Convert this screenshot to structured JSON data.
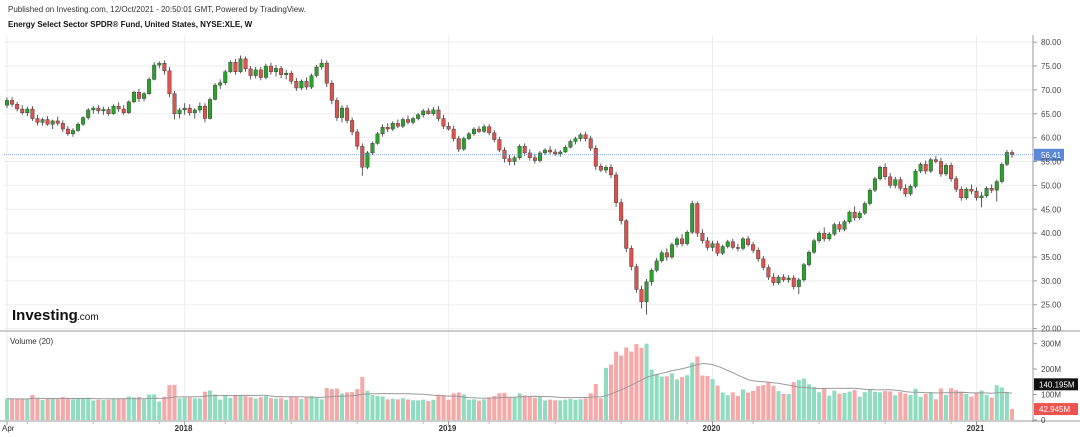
{
  "header": {
    "published": "Published on Investing.com, 12/Oct/2021 - 20:50:01 GMT, Powered by TradingView.",
    "title": "Energy Select Sector SPDR® Fund, United States, NYSE:XLE, W"
  },
  "logo": {
    "brand": "Investing",
    "suffix": ".com"
  },
  "colors": {
    "up": "#26a69a",
    "down": "#ef5350",
    "up_candle": "#2ca02c",
    "down_candle": "#d9534f",
    "vol_up": "#8fdcc0",
    "vol_down": "#f5a8a8",
    "last_price": "#5b87d6",
    "vol_last": "#ef5350",
    "vol_ma_label": "#111111",
    "grid": "#eeeeee",
    "ma_line": "#999999"
  },
  "chart_data": {
    "type": "candlestick",
    "price_axis": {
      "ticks": [
        "80.00",
        "75.00",
        "70.00",
        "65.00",
        "60.00",
        "55.00",
        "50.00",
        "45.00",
        "40.00",
        "35.00",
        "30.00",
        "25.00",
        "20.00"
      ],
      "ylim": [
        19.5,
        81.5
      ]
    },
    "last_price_label": "56.41",
    "last_price_value": 56.41,
    "x_axis_labels": [
      "Apr",
      "2018",
      "2019",
      "2020",
      "2021"
    ],
    "x_axis_label_index": [
      0,
      35,
      87,
      139,
      191
    ],
    "candles": [
      {
        "o": 66.8,
        "h": 68.4,
        "l": 66.2,
        "c": 67.8
      },
      {
        "o": 67.8,
        "h": 68.5,
        "l": 66.5,
        "c": 67.0
      },
      {
        "o": 67.0,
        "h": 67.5,
        "l": 65.5,
        "c": 66.0
      },
      {
        "o": 66.0,
        "h": 66.8,
        "l": 64.8,
        "c": 65.2
      },
      {
        "o": 65.2,
        "h": 66.5,
        "l": 64.5,
        "c": 66.0
      },
      {
        "o": 66.0,
        "h": 66.6,
        "l": 63.5,
        "c": 64.0
      },
      {
        "o": 64.0,
        "h": 64.8,
        "l": 62.6,
        "c": 63.2
      },
      {
        "o": 63.2,
        "h": 64.2,
        "l": 62.5,
        "c": 63.8
      },
      {
        "o": 63.8,
        "h": 64.5,
        "l": 62.5,
        "c": 62.8
      },
      {
        "o": 62.8,
        "h": 63.8,
        "l": 61.8,
        "c": 63.5
      },
      {
        "o": 63.5,
        "h": 64.4,
        "l": 62.5,
        "c": 63.0
      },
      {
        "o": 63.0,
        "h": 63.6,
        "l": 61.2,
        "c": 61.8
      },
      {
        "o": 61.8,
        "h": 62.4,
        "l": 60.4,
        "c": 60.8
      },
      {
        "o": 60.8,
        "h": 62.0,
        "l": 60.2,
        "c": 61.5
      },
      {
        "o": 61.5,
        "h": 63.2,
        "l": 61.2,
        "c": 62.8
      },
      {
        "o": 62.8,
        "h": 64.5,
        "l": 62.5,
        "c": 64.2
      },
      {
        "o": 64.2,
        "h": 66.2,
        "l": 63.8,
        "c": 65.8
      },
      {
        "o": 65.8,
        "h": 66.6,
        "l": 65.0,
        "c": 66.2
      },
      {
        "o": 66.2,
        "h": 66.8,
        "l": 65.0,
        "c": 65.6
      },
      {
        "o": 65.6,
        "h": 66.5,
        "l": 64.8,
        "c": 65.9
      },
      {
        "o": 65.9,
        "h": 66.4,
        "l": 64.6,
        "c": 65.0
      },
      {
        "o": 65.0,
        "h": 67.0,
        "l": 64.8,
        "c": 66.6
      },
      {
        "o": 66.6,
        "h": 67.4,
        "l": 65.4,
        "c": 66.0
      },
      {
        "o": 66.0,
        "h": 66.8,
        "l": 64.8,
        "c": 65.2
      },
      {
        "o": 65.2,
        "h": 67.8,
        "l": 65.0,
        "c": 67.5
      },
      {
        "o": 67.5,
        "h": 69.8,
        "l": 67.2,
        "c": 69.5
      },
      {
        "o": 69.5,
        "h": 70.2,
        "l": 67.5,
        "c": 68.2
      },
      {
        "o": 68.2,
        "h": 69.6,
        "l": 67.6,
        "c": 69.2
      },
      {
        "o": 69.2,
        "h": 72.6,
        "l": 69.0,
        "c": 72.2
      },
      {
        "o": 72.2,
        "h": 75.8,
        "l": 72.0,
        "c": 75.2
      },
      {
        "o": 75.2,
        "h": 76.0,
        "l": 74.5,
        "c": 75.6
      },
      {
        "o": 75.6,
        "h": 76.2,
        "l": 73.2,
        "c": 74.0
      },
      {
        "o": 74.0,
        "h": 74.8,
        "l": 68.5,
        "c": 69.2
      },
      {
        "o": 69.2,
        "h": 69.8,
        "l": 63.8,
        "c": 65.0
      },
      {
        "o": 65.0,
        "h": 66.2,
        "l": 64.0,
        "c": 65.8
      },
      {
        "o": 65.8,
        "h": 67.2,
        "l": 64.8,
        "c": 66.2
      },
      {
        "o": 66.2,
        "h": 67.0,
        "l": 64.6,
        "c": 65.2
      },
      {
        "o": 65.2,
        "h": 66.2,
        "l": 64.0,
        "c": 65.8
      },
      {
        "o": 65.8,
        "h": 67.4,
        "l": 65.2,
        "c": 66.6
      },
      {
        "o": 66.6,
        "h": 67.2,
        "l": 63.2,
        "c": 64.0
      },
      {
        "o": 64.0,
        "h": 68.4,
        "l": 63.8,
        "c": 68.0
      },
      {
        "o": 68.0,
        "h": 71.4,
        "l": 67.8,
        "c": 71.0
      },
      {
        "o": 71.0,
        "h": 72.2,
        "l": 70.2,
        "c": 71.5
      },
      {
        "o": 71.5,
        "h": 74.2,
        "l": 71.0,
        "c": 73.8
      },
      {
        "o": 73.8,
        "h": 76.2,
        "l": 73.5,
        "c": 75.8
      },
      {
        "o": 75.8,
        "h": 76.5,
        "l": 73.2,
        "c": 73.8
      },
      {
        "o": 73.8,
        "h": 77.2,
        "l": 73.5,
        "c": 76.5
      },
      {
        "o": 76.5,
        "h": 77.0,
        "l": 73.8,
        "c": 74.4
      },
      {
        "o": 74.4,
        "h": 75.0,
        "l": 72.2,
        "c": 73.0
      },
      {
        "o": 73.0,
        "h": 74.8,
        "l": 72.4,
        "c": 74.2
      },
      {
        "o": 74.2,
        "h": 74.8,
        "l": 72.0,
        "c": 72.6
      },
      {
        "o": 72.6,
        "h": 75.5,
        "l": 72.2,
        "c": 75.0
      },
      {
        "o": 75.0,
        "h": 75.7,
        "l": 73.2,
        "c": 73.8
      },
      {
        "o": 73.8,
        "h": 75.2,
        "l": 72.8,
        "c": 74.5
      },
      {
        "o": 74.5,
        "h": 75.0,
        "l": 72.5,
        "c": 73.2
      },
      {
        "o": 73.2,
        "h": 74.2,
        "l": 72.2,
        "c": 73.5
      },
      {
        "o": 73.5,
        "h": 74.0,
        "l": 71.2,
        "c": 71.8
      },
      {
        "o": 71.8,
        "h": 72.5,
        "l": 69.8,
        "c": 70.4
      },
      {
        "o": 70.4,
        "h": 72.2,
        "l": 70.0,
        "c": 71.8
      },
      {
        "o": 71.8,
        "h": 72.6,
        "l": 70.0,
        "c": 70.6
      },
      {
        "o": 70.6,
        "h": 73.4,
        "l": 70.2,
        "c": 73.0
      },
      {
        "o": 73.0,
        "h": 75.2,
        "l": 72.6,
        "c": 74.8
      },
      {
        "o": 74.8,
        "h": 76.4,
        "l": 74.2,
        "c": 75.6
      },
      {
        "o": 75.6,
        "h": 76.2,
        "l": 70.6,
        "c": 71.4
      },
      {
        "o": 71.4,
        "h": 72.0,
        "l": 67.0,
        "c": 67.8
      },
      {
        "o": 67.8,
        "h": 68.4,
        "l": 63.5,
        "c": 64.2
      },
      {
        "o": 64.2,
        "h": 66.8,
        "l": 63.2,
        "c": 66.2
      },
      {
        "o": 66.2,
        "h": 66.8,
        "l": 63.0,
        "c": 63.6
      },
      {
        "o": 63.6,
        "h": 64.2,
        "l": 60.5,
        "c": 61.2
      },
      {
        "o": 61.2,
        "h": 61.8,
        "l": 57.5,
        "c": 58.2
      },
      {
        "o": 58.2,
        "h": 58.8,
        "l": 52.0,
        "c": 53.8
      },
      {
        "o": 53.8,
        "h": 57.2,
        "l": 53.4,
        "c": 56.8
      },
      {
        "o": 56.8,
        "h": 59.2,
        "l": 56.4,
        "c": 58.8
      },
      {
        "o": 58.8,
        "h": 61.2,
        "l": 58.5,
        "c": 60.8
      },
      {
        "o": 60.8,
        "h": 62.8,
        "l": 60.2,
        "c": 62.2
      },
      {
        "o": 62.2,
        "h": 63.0,
        "l": 61.2,
        "c": 61.8
      },
      {
        "o": 61.8,
        "h": 63.4,
        "l": 61.4,
        "c": 63.0
      },
      {
        "o": 63.0,
        "h": 63.8,
        "l": 62.0,
        "c": 62.4
      },
      {
        "o": 62.4,
        "h": 64.2,
        "l": 62.0,
        "c": 63.8
      },
      {
        "o": 63.8,
        "h": 64.6,
        "l": 62.8,
        "c": 63.2
      },
      {
        "o": 63.2,
        "h": 64.4,
        "l": 62.8,
        "c": 64.0
      },
      {
        "o": 64.0,
        "h": 65.2,
        "l": 63.6,
        "c": 64.8
      },
      {
        "o": 64.8,
        "h": 66.0,
        "l": 64.2,
        "c": 65.6
      },
      {
        "o": 65.6,
        "h": 66.2,
        "l": 64.8,
        "c": 65.0
      },
      {
        "o": 65.0,
        "h": 66.4,
        "l": 64.6,
        "c": 65.8
      },
      {
        "o": 65.8,
        "h": 66.6,
        "l": 63.4,
        "c": 64.0
      },
      {
        "o": 64.0,
        "h": 64.8,
        "l": 61.8,
        "c": 62.4
      },
      {
        "o": 62.4,
        "h": 63.2,
        "l": 61.5,
        "c": 61.8
      },
      {
        "o": 61.8,
        "h": 62.5,
        "l": 59.2,
        "c": 59.8
      },
      {
        "o": 59.8,
        "h": 60.4,
        "l": 57.0,
        "c": 57.6
      },
      {
        "o": 57.6,
        "h": 60.2,
        "l": 57.2,
        "c": 59.8
      },
      {
        "o": 59.8,
        "h": 61.2,
        "l": 59.5,
        "c": 60.8
      },
      {
        "o": 60.8,
        "h": 62.2,
        "l": 60.4,
        "c": 61.8
      },
      {
        "o": 61.8,
        "h": 62.4,
        "l": 61.0,
        "c": 61.3
      },
      {
        "o": 61.3,
        "h": 62.8,
        "l": 61.0,
        "c": 62.3
      },
      {
        "o": 62.3,
        "h": 62.8,
        "l": 60.5,
        "c": 61.0
      },
      {
        "o": 61.0,
        "h": 61.6,
        "l": 59.0,
        "c": 59.6
      },
      {
        "o": 59.6,
        "h": 60.2,
        "l": 57.0,
        "c": 57.4
      },
      {
        "o": 57.4,
        "h": 58.0,
        "l": 54.8,
        "c": 55.6
      },
      {
        "o": 55.6,
        "h": 56.4,
        "l": 54.2,
        "c": 55.0
      },
      {
        "o": 55.0,
        "h": 56.2,
        "l": 54.2,
        "c": 55.8
      },
      {
        "o": 55.8,
        "h": 58.6,
        "l": 55.4,
        "c": 58.2
      },
      {
        "o": 58.2,
        "h": 58.8,
        "l": 56.2,
        "c": 56.8
      },
      {
        "o": 56.8,
        "h": 57.6,
        "l": 55.2,
        "c": 55.8
      },
      {
        "o": 55.8,
        "h": 56.6,
        "l": 54.6,
        "c": 55.2
      },
      {
        "o": 55.2,
        "h": 57.2,
        "l": 54.8,
        "c": 56.8
      },
      {
        "o": 56.8,
        "h": 57.8,
        "l": 56.4,
        "c": 57.4
      },
      {
        "o": 57.4,
        "h": 58.2,
        "l": 56.6,
        "c": 57.0
      },
      {
        "o": 57.0,
        "h": 57.6,
        "l": 56.2,
        "c": 56.6
      },
      {
        "o": 56.6,
        "h": 57.4,
        "l": 56.0,
        "c": 57.0
      },
      {
        "o": 57.0,
        "h": 58.4,
        "l": 56.8,
        "c": 58.0
      },
      {
        "o": 58.0,
        "h": 59.6,
        "l": 57.8,
        "c": 59.2
      },
      {
        "o": 59.2,
        "h": 60.2,
        "l": 58.6,
        "c": 59.8
      },
      {
        "o": 59.8,
        "h": 61.0,
        "l": 59.2,
        "c": 60.6
      },
      {
        "o": 60.6,
        "h": 61.2,
        "l": 59.2,
        "c": 59.8
      },
      {
        "o": 59.8,
        "h": 60.4,
        "l": 57.2,
        "c": 57.8
      },
      {
        "o": 57.8,
        "h": 58.4,
        "l": 53.2,
        "c": 54.0
      },
      {
        "o": 54.0,
        "h": 54.6,
        "l": 52.8,
        "c": 53.2
      },
      {
        "o": 53.2,
        "h": 54.2,
        "l": 52.6,
        "c": 53.8
      },
      {
        "o": 53.8,
        "h": 54.4,
        "l": 51.5,
        "c": 52.2
      },
      {
        "o": 52.2,
        "h": 52.8,
        "l": 45.5,
        "c": 46.4
      },
      {
        "o": 46.4,
        "h": 47.2,
        "l": 41.8,
        "c": 42.6
      },
      {
        "o": 42.6,
        "h": 43.0,
        "l": 36.0,
        "c": 36.8
      },
      {
        "o": 36.8,
        "h": 37.4,
        "l": 32.2,
        "c": 33.0
      },
      {
        "o": 33.0,
        "h": 33.6,
        "l": 27.5,
        "c": 28.2
      },
      {
        "o": 28.2,
        "h": 29.0,
        "l": 24.2,
        "c": 25.6
      },
      {
        "o": 25.6,
        "h": 30.4,
        "l": 22.9,
        "c": 29.8
      },
      {
        "o": 29.8,
        "h": 32.6,
        "l": 29.0,
        "c": 32.2
      },
      {
        "o": 32.2,
        "h": 34.8,
        "l": 31.8,
        "c": 34.2
      },
      {
        "o": 34.2,
        "h": 36.4,
        "l": 33.8,
        "c": 35.9
      },
      {
        "o": 35.9,
        "h": 36.8,
        "l": 34.2,
        "c": 35.0
      },
      {
        "o": 35.0,
        "h": 38.0,
        "l": 34.6,
        "c": 37.6
      },
      {
        "o": 37.6,
        "h": 39.2,
        "l": 37.0,
        "c": 38.8
      },
      {
        "o": 38.8,
        "h": 39.8,
        "l": 37.2,
        "c": 37.8
      },
      {
        "o": 37.8,
        "h": 40.6,
        "l": 37.4,
        "c": 40.2
      },
      {
        "o": 40.2,
        "h": 46.8,
        "l": 39.8,
        "c": 46.2
      },
      {
        "o": 46.2,
        "h": 46.6,
        "l": 39.2,
        "c": 40.0
      },
      {
        "o": 40.0,
        "h": 40.8,
        "l": 37.8,
        "c": 38.4
      },
      {
        "o": 38.4,
        "h": 39.2,
        "l": 36.4,
        "c": 37.0
      },
      {
        "o": 37.0,
        "h": 38.4,
        "l": 36.2,
        "c": 37.8
      },
      {
        "o": 37.8,
        "h": 38.4,
        "l": 35.2,
        "c": 35.8
      },
      {
        "o": 35.8,
        "h": 37.6,
        "l": 35.4,
        "c": 37.2
      },
      {
        "o": 37.2,
        "h": 38.6,
        "l": 36.8,
        "c": 38.2
      },
      {
        "o": 38.2,
        "h": 38.8,
        "l": 36.6,
        "c": 37.0
      },
      {
        "o": 37.0,
        "h": 37.8,
        "l": 36.2,
        "c": 36.8
      },
      {
        "o": 36.8,
        "h": 39.2,
        "l": 36.4,
        "c": 38.8
      },
      {
        "o": 38.8,
        "h": 39.4,
        "l": 37.2,
        "c": 37.6
      },
      {
        "o": 37.6,
        "h": 38.2,
        "l": 35.8,
        "c": 36.4
      },
      {
        "o": 36.4,
        "h": 37.0,
        "l": 34.0,
        "c": 34.6
      },
      {
        "o": 34.6,
        "h": 35.2,
        "l": 32.2,
        "c": 32.8
      },
      {
        "o": 32.8,
        "h": 33.4,
        "l": 30.2,
        "c": 30.8
      },
      {
        "o": 30.8,
        "h": 31.6,
        "l": 29.0,
        "c": 29.6
      },
      {
        "o": 29.6,
        "h": 31.2,
        "l": 29.2,
        "c": 30.8
      },
      {
        "o": 30.8,
        "h": 31.4,
        "l": 29.8,
        "c": 30.2
      },
      {
        "o": 30.2,
        "h": 31.2,
        "l": 29.6,
        "c": 30.6
      },
      {
        "o": 30.6,
        "h": 31.2,
        "l": 28.2,
        "c": 28.8
      },
      {
        "o": 28.8,
        "h": 30.6,
        "l": 27.2,
        "c": 30.2
      },
      {
        "o": 30.2,
        "h": 33.8,
        "l": 29.8,
        "c": 33.4
      },
      {
        "o": 33.4,
        "h": 36.4,
        "l": 33.0,
        "c": 36.0
      },
      {
        "o": 36.0,
        "h": 38.8,
        "l": 35.6,
        "c": 38.4
      },
      {
        "o": 38.4,
        "h": 40.4,
        "l": 38.0,
        "c": 40.0
      },
      {
        "o": 40.0,
        "h": 41.2,
        "l": 38.2,
        "c": 38.8
      },
      {
        "o": 38.8,
        "h": 40.2,
        "l": 38.4,
        "c": 39.8
      },
      {
        "o": 39.8,
        "h": 42.2,
        "l": 39.4,
        "c": 41.8
      },
      {
        "o": 41.8,
        "h": 42.4,
        "l": 40.2,
        "c": 40.8
      },
      {
        "o": 40.8,
        "h": 42.8,
        "l": 40.4,
        "c": 42.4
      },
      {
        "o": 42.4,
        "h": 44.8,
        "l": 42.0,
        "c": 44.4
      },
      {
        "o": 44.4,
        "h": 45.6,
        "l": 42.6,
        "c": 43.2
      },
      {
        "o": 43.2,
        "h": 44.6,
        "l": 42.8,
        "c": 44.2
      },
      {
        "o": 44.2,
        "h": 46.6,
        "l": 43.8,
        "c": 46.2
      },
      {
        "o": 46.2,
        "h": 49.4,
        "l": 45.8,
        "c": 49.0
      },
      {
        "o": 49.0,
        "h": 51.8,
        "l": 48.6,
        "c": 51.4
      },
      {
        "o": 51.4,
        "h": 54.2,
        "l": 51.0,
        "c": 53.8
      },
      {
        "o": 53.8,
        "h": 54.6,
        "l": 51.2,
        "c": 51.8
      },
      {
        "o": 51.8,
        "h": 52.6,
        "l": 49.4,
        "c": 50.0
      },
      {
        "o": 50.0,
        "h": 51.8,
        "l": 49.4,
        "c": 51.2
      },
      {
        "o": 51.2,
        "h": 51.8,
        "l": 48.8,
        "c": 49.4
      },
      {
        "o": 49.4,
        "h": 50.2,
        "l": 47.6,
        "c": 48.2
      },
      {
        "o": 48.2,
        "h": 50.2,
        "l": 47.8,
        "c": 49.8
      },
      {
        "o": 49.8,
        "h": 53.4,
        "l": 49.4,
        "c": 53.0
      },
      {
        "o": 53.0,
        "h": 54.8,
        "l": 52.6,
        "c": 54.4
      },
      {
        "o": 54.4,
        "h": 55.2,
        "l": 52.4,
        "c": 53.0
      },
      {
        "o": 53.0,
        "h": 55.8,
        "l": 52.6,
        "c": 55.4
      },
      {
        "o": 55.4,
        "h": 56.2,
        "l": 54.6,
        "c": 55.0
      },
      {
        "o": 55.0,
        "h": 55.8,
        "l": 51.8,
        "c": 52.4
      },
      {
        "o": 52.4,
        "h": 54.6,
        "l": 52.0,
        "c": 54.2
      },
      {
        "o": 54.2,
        "h": 54.8,
        "l": 50.8,
        "c": 51.4
      },
      {
        "o": 51.4,
        "h": 52.0,
        "l": 48.6,
        "c": 49.2
      },
      {
        "o": 49.2,
        "h": 49.8,
        "l": 46.8,
        "c": 47.4
      },
      {
        "o": 47.4,
        "h": 49.6,
        "l": 47.0,
        "c": 49.2
      },
      {
        "o": 49.2,
        "h": 50.2,
        "l": 48.2,
        "c": 48.8
      },
      {
        "o": 48.8,
        "h": 49.6,
        "l": 46.8,
        "c": 47.4
      },
      {
        "o": 47.4,
        "h": 48.6,
        "l": 45.4,
        "c": 47.8
      },
      {
        "o": 47.8,
        "h": 49.8,
        "l": 47.4,
        "c": 49.4
      },
      {
        "o": 49.4,
        "h": 50.2,
        "l": 48.4,
        "c": 49.0
      },
      {
        "o": 49.0,
        "h": 51.2,
        "l": 46.6,
        "c": 50.8
      },
      {
        "o": 50.8,
        "h": 54.8,
        "l": 50.4,
        "c": 54.4
      },
      {
        "o": 54.4,
        "h": 57.4,
        "l": 54.0,
        "c": 56.9
      },
      {
        "o": 56.9,
        "h": 57.4,
        "l": 55.8,
        "c": 56.41
      }
    ],
    "volume": {
      "label": "Volume (20)",
      "axis_ticks": [
        "300M",
        "200M",
        "100M",
        "0"
      ],
      "ylim": [
        0,
        330
      ],
      "last_volume_label": "42.945M",
      "last_volume_value": 42.945,
      "ma_label": "140.195M",
      "ma_value": 140.195
    }
  }
}
